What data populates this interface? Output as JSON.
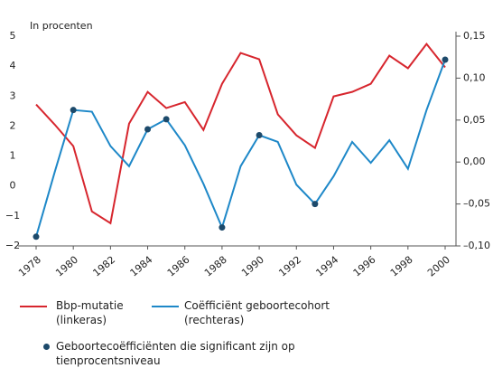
{
  "chart_data": {
    "type": "line",
    "y_label": "In procenten",
    "x": [
      1978,
      1979,
      1980,
      1981,
      1982,
      1983,
      1984,
      1985,
      1986,
      1987,
      1988,
      1989,
      1990,
      1991,
      1992,
      1993,
      1994,
      1995,
      1996,
      1997,
      1998,
      1999,
      2000
    ],
    "xlim": [
      1978,
      2000
    ],
    "xticks": [
      1978,
      1980,
      1982,
      1984,
      1986,
      1988,
      1990,
      1992,
      1994,
      1996,
      1998,
      2000
    ],
    "ylim": [
      -2,
      5
    ],
    "yticks": [
      {
        "value": -2,
        "label": "−2"
      },
      {
        "value": -1,
        "label": "−1"
      },
      0,
      1,
      2,
      3,
      4,
      5
    ],
    "y2lim": [
      -0.1,
      0.15
    ],
    "y2ticks": [
      {
        "value": -0.1,
        "label": "–0,10"
      },
      {
        "value": -0.05,
        "label": "–0,05"
      },
      {
        "value": 0,
        "label": "0,00"
      },
      {
        "value": 0.05,
        "label": "0,05"
      },
      {
        "value": 0.1,
        "label": "0,10"
      },
      {
        "value": 0.15,
        "label": "0,15"
      }
    ],
    "series": [
      {
        "name": "Bbp-mutatie (linkeras)",
        "color": "#d7262e",
        "values": [
          2.72,
          2.05,
          1.33,
          -0.85,
          -1.24,
          2.08,
          3.14,
          2.6,
          2.8,
          1.87,
          3.41,
          4.44,
          4.23,
          2.39,
          1.69,
          1.27,
          2.99,
          3.14,
          3.41,
          4.35,
          3.93,
          4.74,
          3.96
        ]
      },
      {
        "name": "Coëfficiënt geboortecohort (rechteras)",
        "color": "#1e88c8",
        "axis": "y2",
        "values": [
          -0.089,
          -0.012,
          0.062,
          0.06,
          0.019,
          -0.005,
          0.039,
          0.051,
          0.02,
          -0.026,
          -0.078,
          -0.005,
          0.032,
          0.024,
          -0.027,
          -0.05,
          -0.017,
          0.024,
          -0.001,
          0.026,
          -0.008,
          0.062,
          0.122
        ],
        "markers": [
          true,
          false,
          true,
          false,
          false,
          false,
          true,
          true,
          false,
          false,
          true,
          false,
          true,
          false,
          false,
          true,
          false,
          false,
          false,
          false,
          false,
          false,
          true
        ]
      }
    ],
    "marker_label": "Geboortecoëfficiënten die significant zijn op tienprocentsniveau",
    "marker_color": "#1d4a6b"
  }
}
